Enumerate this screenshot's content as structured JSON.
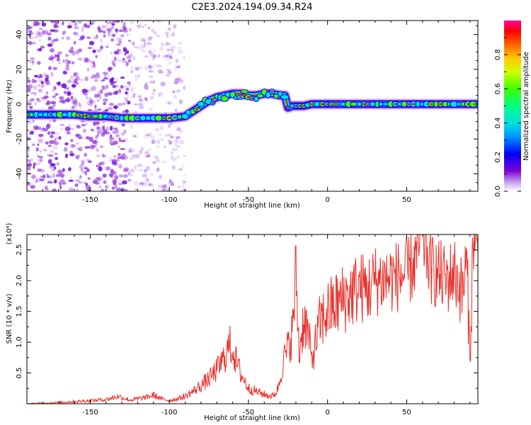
{
  "title": "C2E3.2024.194.09.34.R24",
  "chart_data": [
    {
      "type": "heatmap",
      "xlabel": "Height of straight line (km)",
      "ylabel": "Frequency (Hz)",
      "xlim": [
        -190,
        95
      ],
      "ylim": [
        -50,
        48
      ],
      "xticks": [
        -150,
        -100,
        -50,
        0,
        50
      ],
      "yticks": [
        -40,
        -20,
        0,
        20,
        40
      ],
      "colorbar": {
        "label": "Normalized spectral amplitude",
        "range": [
          0.0,
          1.0
        ],
        "ticks": [
          "0.0",
          "0.2",
          "0.4",
          "0.6",
          "0.8"
        ],
        "colors": [
          "#ffffff",
          "#7b00d4",
          "#0000ff",
          "#00c8ff",
          "#00ff80",
          "#40ff00",
          "#ffff00",
          "#ff8000",
          "#ff0000",
          "#ff00a0"
        ]
      },
      "ridge": {
        "x": [
          -190,
          -160,
          -150,
          -140,
          -130,
          -120,
          -110,
          -100,
          -90,
          -85,
          -80,
          -75,
          -70,
          -65,
          -60,
          -55,
          -50,
          -45,
          -40,
          -35,
          -30,
          -27,
          -25,
          -22,
          -20,
          -15,
          -10,
          0,
          10,
          20,
          40,
          60,
          80,
          95
        ],
        "y": [
          -6,
          -6,
          -7,
          -7,
          -8,
          -8,
          -8,
          -8,
          -7,
          -4,
          -1,
          2,
          4,
          5,
          6,
          6,
          5,
          5,
          6,
          6,
          5,
          5,
          -2,
          -1,
          -1,
          -1,
          0,
          0,
          0,
          0,
          0,
          0,
          0,
          0
        ]
      },
      "noise_region_x": [
        -190,
        -125
      ]
    },
    {
      "type": "line",
      "xlabel": "Height of straight line (km)",
      "ylabel": "SNR (10 * v/v)",
      "y_multiplier": "(x10⁴)",
      "xlim": [
        -190,
        95
      ],
      "ylim": [
        0,
        2.75
      ],
      "xticks": [
        -150,
        -100,
        -50,
        0,
        50
      ],
      "yticks": [
        0.5,
        1.0,
        1.5,
        2.0,
        2.5
      ],
      "ytick_labels": [
        "0.5",
        "1.0",
        "1.5",
        "2.0",
        "2.5"
      ],
      "series": [
        {
          "color": "#e8312b",
          "x": [
            -190,
            -170,
            -150,
            -140,
            -132,
            -125,
            -115,
            -110,
            -105,
            -100,
            -95,
            -90,
            -85,
            -80,
            -75,
            -70,
            -65,
            -62,
            -60,
            -58,
            -55,
            -52,
            -50,
            -45,
            -40,
            -35,
            -32,
            -30,
            -28,
            -25,
            -22,
            -20,
            -18,
            -15,
            -12,
            -10,
            -5,
            0,
            5,
            10,
            15,
            20,
            25,
            30,
            40,
            50,
            55,
            60,
            65,
            70,
            75,
            80,
            85,
            88,
            90,
            92,
            95
          ],
          "y": [
            0.0,
            0.02,
            0.05,
            0.07,
            0.12,
            0.06,
            0.1,
            0.14,
            0.08,
            0.05,
            0.08,
            0.12,
            0.2,
            0.3,
            0.4,
            0.55,
            0.75,
            0.95,
            0.9,
            0.7,
            0.5,
            0.35,
            0.25,
            0.2,
            0.15,
            0.12,
            0.2,
            0.4,
            0.7,
            0.9,
            1.2,
            2.2,
            0.8,
            1.4,
            1.1,
            0.7,
            1.3,
            1.5,
            1.6,
            1.7,
            1.8,
            1.9,
            1.85,
            2.0,
            2.05,
            2.1,
            2.3,
            2.75,
            2.2,
            2.1,
            2.0,
            2.15,
            1.8,
            2.3,
            0.7,
            2.7,
            2.4
          ]
        }
      ]
    }
  ]
}
